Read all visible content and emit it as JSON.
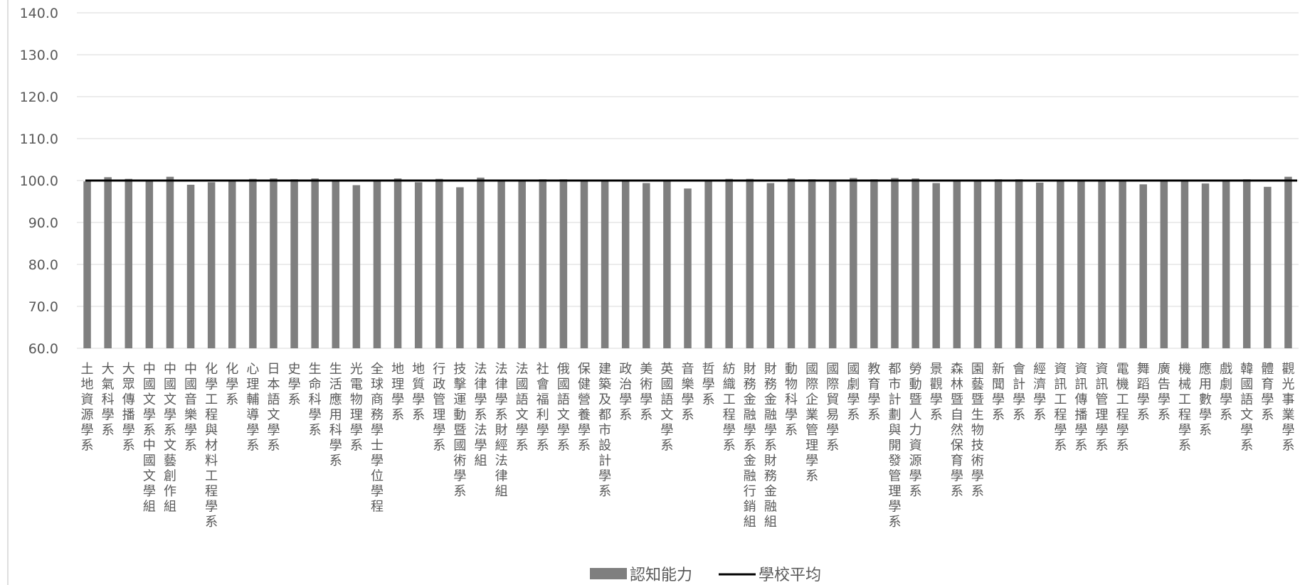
{
  "chart_data": {
    "type": "bar",
    "title": "",
    "xlabel": "",
    "ylabel": "",
    "ylim": [
      60,
      140
    ],
    "yticks": [
      "60.0",
      "70.0",
      "80.0",
      "90.0",
      "100.0",
      "110.0",
      "120.0",
      "130.0",
      "140.0"
    ],
    "grid": true,
    "legend_position": "bottom",
    "categories": [
      "土地資源學系",
      "大氣科學系",
      "大眾傳播學系",
      "中國文學系中國文學組",
      "中國文學系文藝創作組",
      "中國音樂學系",
      "化學工程與材料工程學系",
      "化學系",
      "心理輔導學系",
      "日本語文學系",
      "史學系",
      "生命科學系",
      "生活應用科學系",
      "光電物理學系",
      "全球商務學士學位學程",
      "地理學系",
      "地質學系",
      "行政管理學系",
      "技擊運動暨國術學系",
      "法律學系法學組",
      "法律學系財經法律組",
      "法國語文學系",
      "社會福利學系",
      "俄國語文學系",
      "保健營養學系",
      "建築及都市設計學系",
      "政治學系",
      "美術學系",
      "英國語文學系",
      "音樂學系",
      "哲學系",
      "紡織工程學系",
      "財務金融學系金融行銷組",
      "財務金融學系財務金融組",
      "動物科學系",
      "國際企業管理學系",
      "國際貿易學系",
      "國劇學系",
      "教育學系",
      "都市計劃與開發管理學系",
      "勞動暨人力資源學系",
      "景觀學系",
      "森林暨自然保育學系",
      "園藝暨生物技術學系",
      "新聞學系",
      "會計學系",
      "經濟學系",
      "資訊工程學系",
      "資訊傳播學系",
      "資訊管理學系",
      "電機工程學系",
      "舞蹈學系",
      "廣告學系",
      "機械工程學系",
      "應用數學系",
      "戲劇學系",
      "韓國語文學系",
      "體育學系",
      "觀光事業學系"
    ],
    "series": [
      {
        "name": "認知能力",
        "type": "bar",
        "color": "#7f7f7f",
        "values": [
          99.8,
          100.8,
          100.4,
          99.9,
          100.9,
          99.0,
          99.6,
          99.8,
          100.4,
          100.5,
          100.3,
          100.5,
          100.1,
          98.9,
          100.1,
          100.5,
          99.6,
          100.4,
          98.4,
          100.7,
          100.1,
          100.1,
          100.3,
          100.3,
          100.1,
          100.1,
          100.2,
          99.4,
          100.0,
          98.1,
          100.1,
          100.4,
          100.4,
          99.4,
          100.5,
          100.3,
          100.0,
          100.6,
          100.3,
          100.6,
          100.5,
          99.4,
          100.0,
          100.1,
          100.3,
          100.3,
          99.5,
          100.1,
          100.1,
          100.1,
          100.1,
          99.1,
          100.0,
          100.1,
          99.3,
          100.1,
          100.3,
          98.5,
          100.9
        ]
      },
      {
        "name": "學校平均",
        "type": "line",
        "color": "#000000",
        "values": [
          100.0,
          100.0,
          100.0,
          100.0,
          100.0,
          100.0,
          100.0,
          100.0,
          100.0,
          100.0,
          100.0,
          100.0,
          100.0,
          100.0,
          100.0,
          100.0,
          100.0,
          100.0,
          100.0,
          100.0,
          100.0,
          100.0,
          100.0,
          100.0,
          100.0,
          100.0,
          100.0,
          100.0,
          100.0,
          100.0,
          100.0,
          100.0,
          100.0,
          100.0,
          100.0,
          100.0,
          100.0,
          100.0,
          100.0,
          100.0,
          100.0,
          100.0,
          100.0,
          100.0,
          100.0,
          100.0,
          100.0,
          100.0,
          100.0,
          100.0,
          100.0,
          100.0,
          100.0,
          100.0,
          100.0,
          100.0,
          100.0,
          100.0,
          100.0
        ]
      }
    ],
    "colors": {
      "gridline": "#d9d9d9",
      "axis": "#bfbfbf",
      "text": "#595959"
    }
  }
}
